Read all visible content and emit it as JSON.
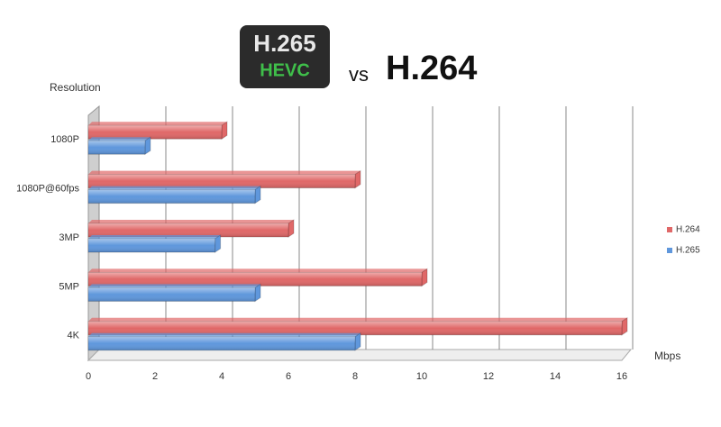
{
  "chart_data": {
    "type": "bar",
    "orientation": "horizontal",
    "title": {
      "logo": "H.265",
      "logo_sub": "HEVC",
      "vs": "vs",
      "text": "H.264"
    },
    "y_label": "Resolution",
    "x_label": "Mbps",
    "categories": [
      "1080P",
      "1080P@60fps",
      "3MP",
      "5MP",
      "4K"
    ],
    "series": [
      {
        "name": "H.264",
        "color": "#e06868",
        "values": [
          4,
          8,
          6,
          10,
          16
        ]
      },
      {
        "name": "H.265",
        "color": "#5f97dc",
        "values": [
          1.7,
          5,
          3.8,
          5,
          8
        ]
      }
    ],
    "xlim": [
      0,
      16
    ],
    "xticks": [
      0,
      2,
      4,
      6,
      8,
      10,
      12,
      14,
      16
    ],
    "grid": true,
    "legend": "right"
  }
}
